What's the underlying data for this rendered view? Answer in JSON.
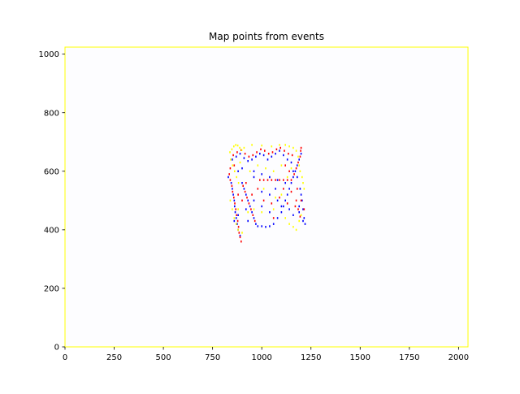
{
  "chart_data": {
    "type": "scatter",
    "title": "Map points from events",
    "xlabel": "",
    "ylabel": "",
    "xlim": [
      0,
      2048
    ],
    "ylim": [
      0,
      1024
    ],
    "grid": false,
    "x_ticks": [
      0,
      250,
      500,
      750,
      1000,
      1250,
      1500,
      1750,
      2000
    ],
    "y_ticks": [
      0,
      200,
      400,
      600,
      800,
      1000
    ],
    "colors": {
      "axes_frame": "#ffff00",
      "axes_background": "#fdfdff",
      "positive_events": "#0000ff",
      "negative_events": "#ff0000",
      "other_events": "#ffff00"
    },
    "series": [
      {
        "color": "#0000ff",
        "points": [
          [
            830,
            580
          ],
          [
            845,
            560
          ],
          [
            850,
            540
          ],
          [
            855,
            520
          ],
          [
            860,
            500
          ],
          [
            862,
            480
          ],
          [
            865,
            460
          ],
          [
            870,
            440
          ],
          [
            875,
            420
          ],
          [
            880,
            400
          ],
          [
            900,
            560
          ],
          [
            910,
            540
          ],
          [
            920,
            520
          ],
          [
            930,
            500
          ],
          [
            940,
            480
          ],
          [
            950,
            460
          ],
          [
            960,
            440
          ],
          [
            970,
            420
          ],
          [
            980,
            412
          ],
          [
            1000,
            412
          ],
          [
            1020,
            410
          ],
          [
            1040,
            412
          ],
          [
            1060,
            420
          ],
          [
            1080,
            440
          ],
          [
            1100,
            460
          ],
          [
            1110,
            480
          ],
          [
            1120,
            500
          ],
          [
            1130,
            520
          ],
          [
            1140,
            540
          ],
          [
            1150,
            560
          ],
          [
            1160,
            580
          ],
          [
            1170,
            600
          ],
          [
            1180,
            620
          ],
          [
            1190,
            640
          ],
          [
            1200,
            660
          ],
          [
            1205,
            500
          ],
          [
            1210,
            470
          ],
          [
            1215,
            440
          ],
          [
            850,
            640
          ],
          [
            870,
            650
          ],
          [
            890,
            660
          ],
          [
            910,
            645
          ],
          [
            930,
            635
          ],
          [
            950,
            640
          ],
          [
            970,
            650
          ],
          [
            990,
            660
          ],
          [
            1010,
            655
          ],
          [
            1030,
            640
          ],
          [
            1050,
            650
          ],
          [
            1070,
            660
          ],
          [
            1090,
            670
          ],
          [
            1110,
            655
          ],
          [
            1130,
            640
          ],
          [
            1150,
            630
          ],
          [
            880,
            600
          ],
          [
            900,
            610
          ],
          [
            960,
            600
          ],
          [
            1000,
            590
          ],
          [
            1040,
            580
          ],
          [
            1080,
            570
          ],
          [
            1120,
            560
          ],
          [
            1160,
            600
          ],
          [
            1180,
            580
          ],
          [
            1195,
            540
          ],
          [
            1200,
            520
          ],
          [
            1190,
            480
          ],
          [
            860,
            430
          ],
          [
            880,
            450
          ],
          [
            920,
            470
          ],
          [
            960,
            500
          ],
          [
            1000,
            530
          ],
          [
            1040,
            520
          ],
          [
            1080,
            500
          ],
          [
            1100,
            480
          ],
          [
            1140,
            470
          ],
          [
            1160,
            450
          ],
          [
            1190,
            460
          ],
          [
            1210,
            430
          ],
          [
            1220,
            420
          ],
          [
            890,
            380
          ],
          [
            960,
            580
          ],
          [
            1000,
            480
          ],
          [
            1040,
            460
          ],
          [
            1070,
            540
          ],
          [
            930,
            430
          ]
        ]
      },
      {
        "color": "#ff0000",
        "points": [
          [
            835,
            590
          ],
          [
            840,
            570
          ],
          [
            848,
            550
          ],
          [
            852,
            530
          ],
          [
            858,
            510
          ],
          [
            863,
            490
          ],
          [
            868,
            470
          ],
          [
            872,
            450
          ],
          [
            878,
            430
          ],
          [
            882,
            410
          ],
          [
            885,
            390
          ],
          [
            890,
            375
          ],
          [
            895,
            360
          ],
          [
            905,
            550
          ],
          [
            915,
            530
          ],
          [
            925,
            510
          ],
          [
            935,
            490
          ],
          [
            945,
            470
          ],
          [
            955,
            450
          ],
          [
            965,
            430
          ],
          [
            990,
            570
          ],
          [
            1010,
            570
          ],
          [
            1030,
            570
          ],
          [
            1050,
            570
          ],
          [
            1070,
            570
          ],
          [
            1090,
            570
          ],
          [
            1110,
            570
          ],
          [
            1130,
            570
          ],
          [
            1150,
            570
          ],
          [
            1165,
            590
          ],
          [
            1175,
            610
          ],
          [
            1185,
            630
          ],
          [
            1195,
            650
          ],
          [
            1198,
            670
          ],
          [
            1200,
            680
          ],
          [
            1175,
            500
          ],
          [
            1185,
            470
          ],
          [
            1195,
            445
          ],
          [
            855,
            655
          ],
          [
            875,
            665
          ],
          [
            895,
            672
          ],
          [
            915,
            660
          ],
          [
            935,
            650
          ],
          [
            955,
            655
          ],
          [
            975,
            665
          ],
          [
            995,
            675
          ],
          [
            1015,
            670
          ],
          [
            1035,
            660
          ],
          [
            1055,
            665
          ],
          [
            1075,
            675
          ],
          [
            1095,
            680
          ],
          [
            1115,
            670
          ],
          [
            1135,
            660
          ],
          [
            1155,
            655
          ],
          [
            880,
            520
          ],
          [
            900,
            500
          ],
          [
            950,
            520
          ],
          [
            1010,
            500
          ],
          [
            1050,
            490
          ],
          [
            1090,
            510
          ],
          [
            1130,
            490
          ],
          [
            1170,
            480
          ],
          [
            1200,
            500
          ],
          [
            1215,
            470
          ],
          [
            840,
            610
          ],
          [
            860,
            620
          ],
          [
            1110,
            540
          ],
          [
            1120,
            620
          ],
          [
            1140,
            600
          ],
          [
            1060,
            440
          ],
          [
            920,
            560
          ],
          [
            980,
            540
          ],
          [
            1150,
            530
          ],
          [
            1180,
            540
          ]
        ]
      },
      {
        "color": "#ffff00",
        "points": [
          [
            838,
            665
          ],
          [
            848,
            675
          ],
          [
            858,
            685
          ],
          [
            868,
            690
          ],
          [
            878,
            688
          ],
          [
            888,
            680
          ],
          [
            898,
            672
          ],
          [
            842,
            640
          ],
          [
            852,
            620
          ],
          [
            862,
            600
          ],
          [
            872,
            580
          ],
          [
            882,
            560
          ],
          [
            1120,
            690
          ],
          [
            1140,
            685
          ],
          [
            1160,
            680
          ],
          [
            1175,
            670
          ],
          [
            1185,
            650
          ],
          [
            1190,
            620
          ],
          [
            1195,
            600
          ],
          [
            1205,
            580
          ],
          [
            1210,
            560
          ],
          [
            1215,
            540
          ],
          [
            1200,
            450
          ],
          [
            1190,
            430
          ],
          [
            840,
            500
          ],
          [
            850,
            470
          ],
          [
            860,
            440
          ],
          [
            870,
            420
          ],
          [
            880,
            400
          ],
          [
            900,
            390
          ],
          [
            960,
            470
          ],
          [
            1000,
            460
          ],
          [
            1060,
            470
          ],
          [
            1100,
            520
          ],
          [
            1120,
            440
          ],
          [
            1140,
            420
          ],
          [
            1160,
            410
          ],
          [
            1175,
            400
          ],
          [
            940,
            600
          ],
          [
            980,
            620
          ],
          [
            1020,
            610
          ],
          [
            1060,
            600
          ],
          [
            1100,
            620
          ],
          [
            910,
            680
          ],
          [
            950,
            690
          ],
          [
            1000,
            688
          ],
          [
            1050,
            685
          ],
          [
            1090,
            690
          ],
          [
            1150,
            610
          ],
          [
            1130,
            580
          ],
          [
            880,
            470
          ],
          [
            930,
            460
          ],
          [
            1070,
            510
          ],
          [
            1010,
            540
          ],
          [
            890,
            630
          ]
        ]
      }
    ]
  }
}
